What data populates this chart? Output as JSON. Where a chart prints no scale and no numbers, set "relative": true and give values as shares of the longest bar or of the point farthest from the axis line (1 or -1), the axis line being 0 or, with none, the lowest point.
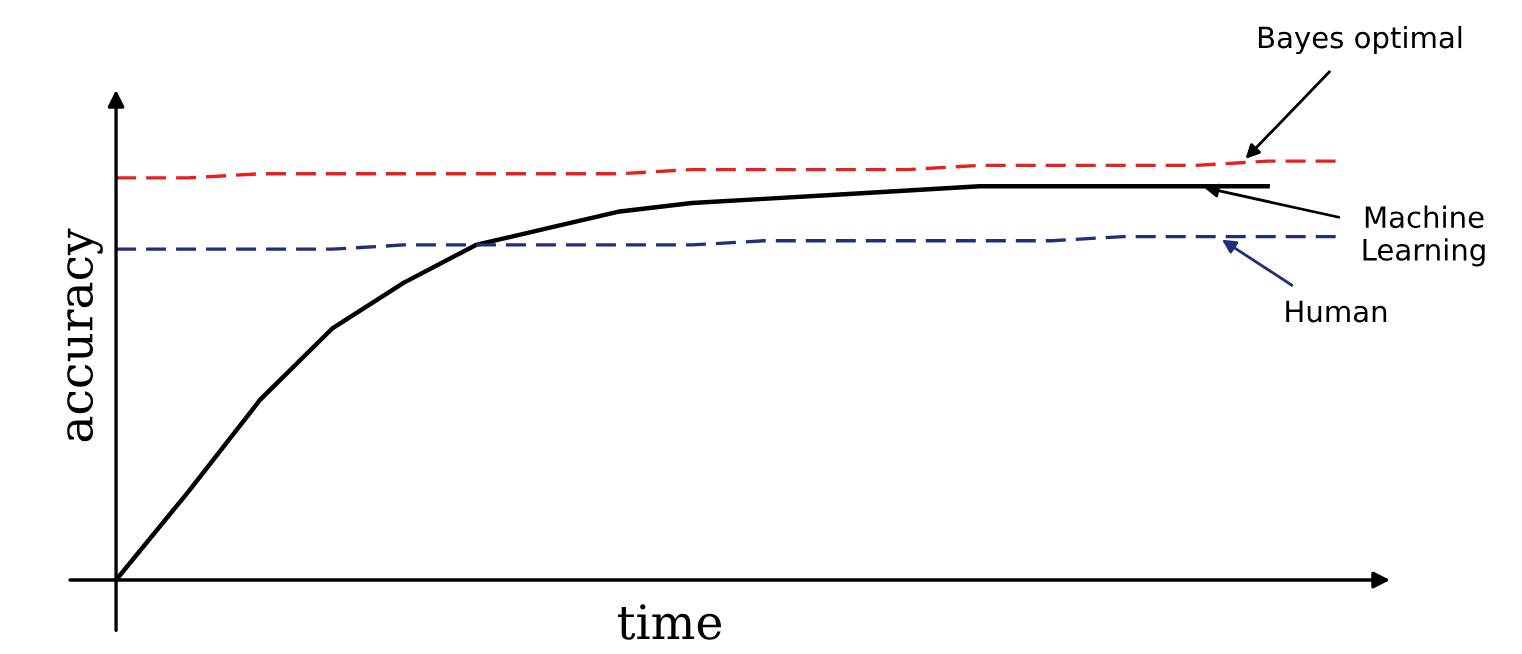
{
  "chart_data": {
    "type": "line",
    "relative": true,
    "xlabel": "time",
    "ylabel": "accuracy",
    "marker": "none",
    "categories": [
      null,
      null,
      null,
      null,
      null,
      null,
      null,
      null,
      null,
      null,
      null,
      null,
      null,
      null,
      null,
      null,
      null,
      null
    ],
    "series": [
      {
        "name": "Bayes optimal",
        "color": "#e8201e",
        "line_style": "dashed",
        "values": [
          0.96,
          0.96,
          0.97,
          0.97,
          0.97,
          0.97,
          0.97,
          0.97,
          0.98,
          0.98,
          0.98,
          0.98,
          0.99,
          0.99,
          0.99,
          0.99,
          1.0,
          1.0
        ]
      },
      {
        "name": "Machine Learning",
        "color": "#000000",
        "line_style": "solid",
        "values": [
          0,
          0.21,
          0.43,
          0.6,
          0.71,
          0.8,
          0.84,
          0.88,
          0.9,
          0.91,
          0.92,
          0.93,
          0.94,
          0.94,
          0.94,
          0.94,
          0.94,
          null
        ]
      },
      {
        "name": "Human",
        "color": "#1f2f7a",
        "line_style": "dashed",
        "values": [
          0.79,
          0.79,
          0.79,
          0.79,
          0.8,
          0.8,
          0.8,
          0.8,
          0.8,
          0.81,
          0.81,
          0.81,
          0.81,
          0.81,
          0.82,
          0.82,
          0.82,
          0.82
        ]
      }
    ]
  }
}
